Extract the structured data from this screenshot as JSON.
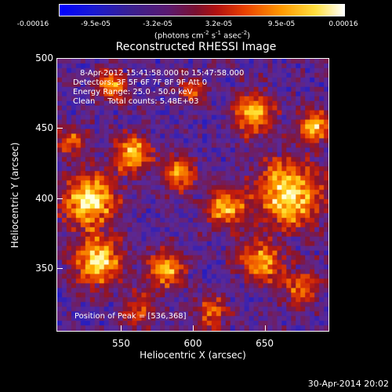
{
  "colorbar": {
    "ticks": [
      "-0.00016",
      "-9.5e-05",
      "-3.2e-05",
      "3.2e-05",
      "9.5e-05",
      "0.00016"
    ],
    "units_prefix": "(photons cm",
    "units_exp1": "-2",
    "units_mid1": " s",
    "units_exp2": "-1",
    "units_mid2": " asec",
    "units_exp3": "-2",
    "units_suffix": ")"
  },
  "title": "Reconstructed RHESSI Image",
  "annotations": {
    "line1": "8-Apr-2012 15:41:58.000 to 15:47:58.000",
    "line2": "Detectors: 3F 5F 6F 7F 8F 9F Att 0",
    "line3": "Energy Range: 25.0 - 50.0 keV",
    "line4": "Clean     Total counts: 5.48E+03",
    "peak": "Position of Peak = [536,368]"
  },
  "axes": {
    "xlabel": "Heliocentric X (arcsec)",
    "ylabel": "Heliocentric Y (arcsec)",
    "xticks": [
      "550",
      "600",
      "650"
    ],
    "yticks": [
      "500",
      "450",
      "400",
      "350"
    ],
    "xrange": [
      505,
      695
    ],
    "yrange": [
      305,
      500
    ]
  },
  "footer": "30-Apr-2014 20:02"
}
